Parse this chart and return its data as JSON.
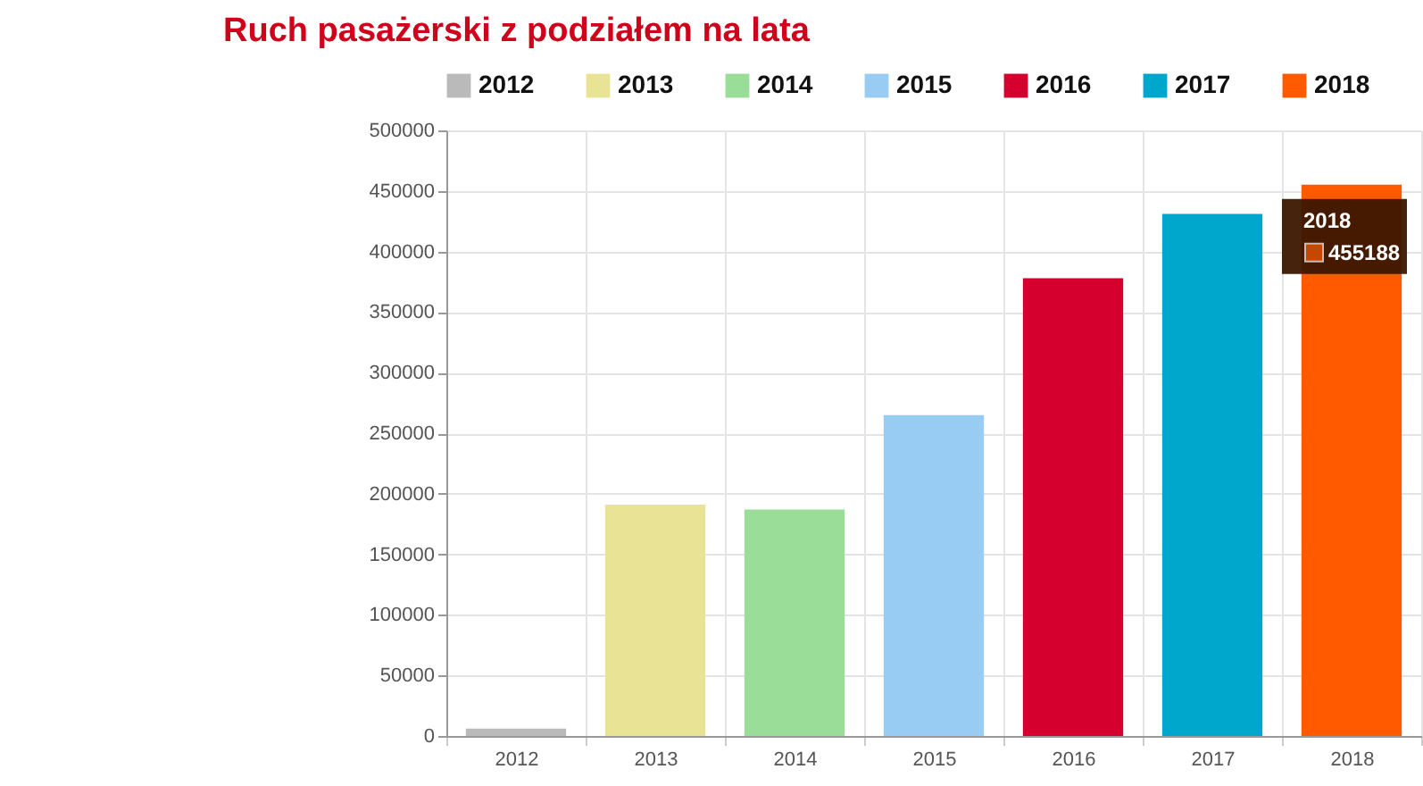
{
  "chart_data": {
    "type": "bar",
    "title": "Ruch pasażerski z podziałem na lata",
    "categories": [
      "2012",
      "2013",
      "2014",
      "2015",
      "2016",
      "2017",
      "2018"
    ],
    "stacked": true,
    "series": [
      {
        "name": "2012",
        "color": "#bababa",
        "values": [
          6000,
          null,
          null,
          null,
          null,
          null,
          null
        ]
      },
      {
        "name": "2013",
        "color": "#e9e495",
        "values": [
          null,
          191000,
          null,
          null,
          null,
          null,
          null
        ]
      },
      {
        "name": "2014",
        "color": "#99dd99",
        "values": [
          null,
          null,
          187000,
          null,
          null,
          null,
          null
        ]
      },
      {
        "name": "2015",
        "color": "#99ccf3",
        "values": [
          null,
          null,
          null,
          265000,
          null,
          null,
          null
        ]
      },
      {
        "name": "2016",
        "color": "#d6002e",
        "values": [
          null,
          null,
          null,
          null,
          378000,
          null,
          null
        ]
      },
      {
        "name": "2017",
        "color": "#00a7cc",
        "values": [
          null,
          null,
          null,
          null,
          null,
          431000,
          null
        ]
      },
      {
        "name": "2018",
        "color": "#ff5a00",
        "values": [
          null,
          null,
          null,
          null,
          null,
          null,
          455188
        ]
      }
    ],
    "ylim": [
      0,
      500000
    ],
    "yticks": [
      0,
      50000,
      100000,
      150000,
      200000,
      250000,
      300000,
      350000,
      400000,
      450000,
      500000
    ],
    "grid": true,
    "legend": "top",
    "annotations": [
      {
        "text": "455188",
        "x": "2018",
        "y": 455188
      }
    ]
  }
}
